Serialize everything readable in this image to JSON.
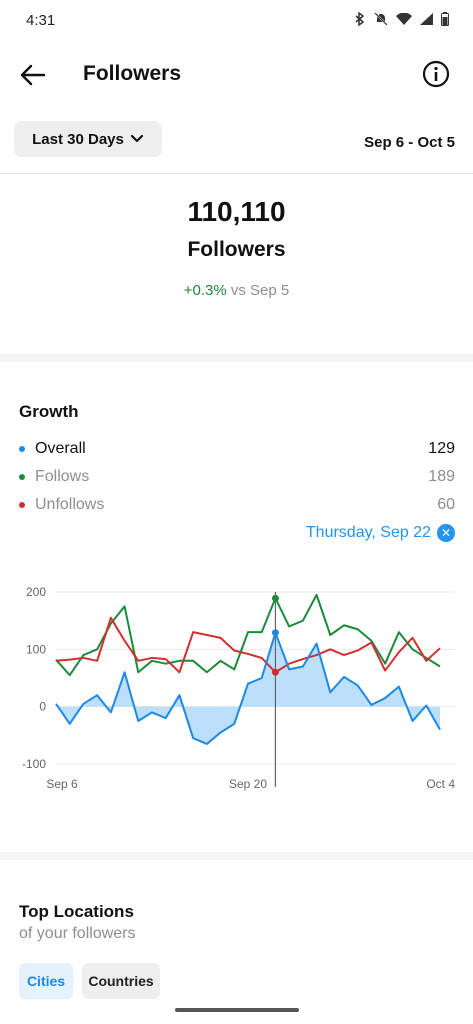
{
  "status_bar": {
    "time": "4:31"
  },
  "header": {
    "title": "Followers"
  },
  "filter": {
    "range_label": "Last 30 Days",
    "date_range": "Sep 6 - Oct 5"
  },
  "summary": {
    "count": "110,110",
    "label": "Followers",
    "delta": "+0.3%",
    "delta_suffix": "vs Sep 5"
  },
  "growth": {
    "title": "Growth",
    "legend": [
      {
        "label": "Overall",
        "value": "129",
        "color": "#1e88e5"
      },
      {
        "label": "Follows",
        "value": "189",
        "color": "#1c8a3b"
      },
      {
        "label": "Unfollows",
        "value": "60",
        "color": "#d32f2f"
      }
    ],
    "selected_day": "Thursday, Sep 22"
  },
  "chart_data": {
    "type": "line",
    "x_ticks": [
      "Sep 6",
      "Sep 20",
      "Oct 4"
    ],
    "y_ticks": [
      "200",
      "100",
      "0",
      "-100"
    ],
    "ylim": [
      -100,
      200
    ],
    "selected_index": 16,
    "grid": true,
    "series": [
      {
        "name": "Follows",
        "color": "#1c8a3b",
        "values": [
          82,
          55,
          90,
          100,
          145,
          175,
          60,
          80,
          75,
          80,
          80,
          60,
          80,
          65,
          130,
          130,
          189,
          140,
          150,
          195,
          125,
          142,
          135,
          115,
          75,
          130,
          100,
          85,
          70
        ]
      },
      {
        "name": "Unfollows",
        "color": "#d32f2f",
        "values": [
          80,
          82,
          85,
          80,
          155,
          115,
          80,
          85,
          83,
          60,
          130,
          125,
          120,
          98,
          92,
          85,
          60,
          75,
          83,
          90,
          100,
          90,
          98,
          112,
          63,
          95,
          120,
          80,
          102
        ]
      },
      {
        "name": "Overall",
        "color": "#1e88e5",
        "values": [
          5,
          -30,
          5,
          20,
          -10,
          60,
          -25,
          -10,
          -20,
          20,
          -55,
          -65,
          -45,
          -30,
          40,
          50,
          129,
          65,
          70,
          110,
          25,
          52,
          37,
          3,
          15,
          35,
          -25,
          2,
          -40
        ]
      }
    ]
  },
  "locations": {
    "title": "Top Locations",
    "subtitle": "of your followers",
    "tabs": [
      "Cities",
      "Countries"
    ]
  }
}
